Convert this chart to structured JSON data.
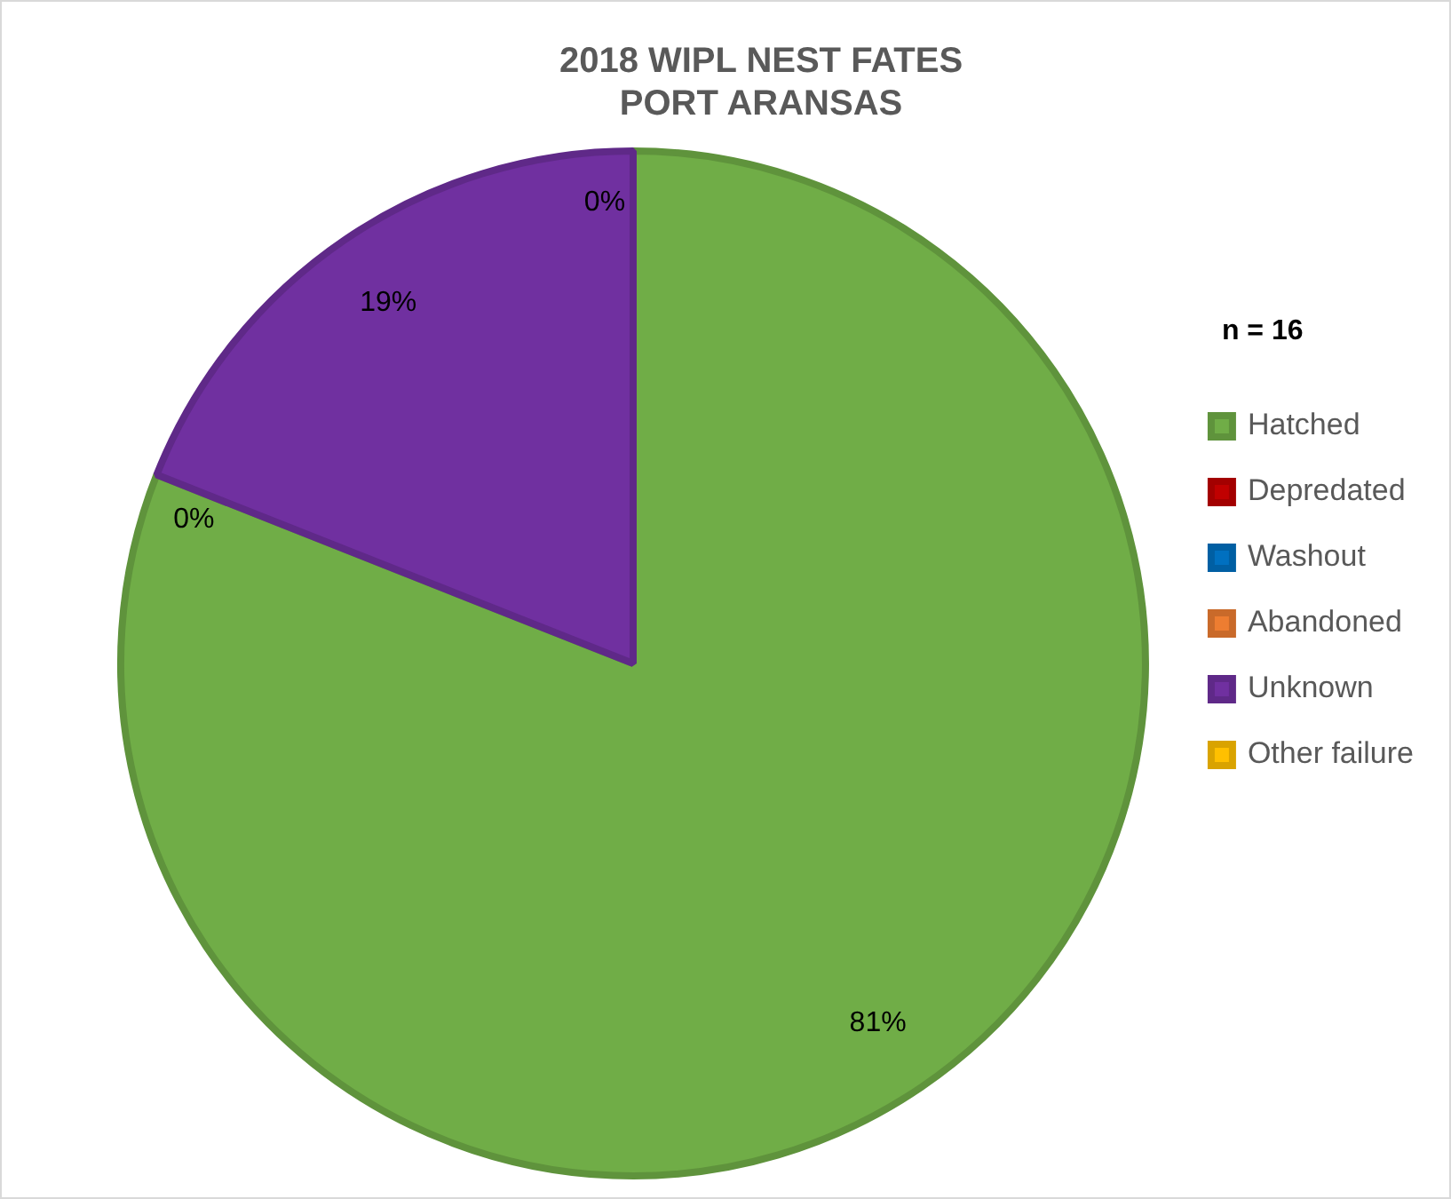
{
  "chart_data": {
    "type": "pie",
    "title": "2018 WIPL NEST FATES\nPORT ARANSAS",
    "categories": [
      "Hatched",
      "Depredated",
      "Washout",
      "Abandoned",
      "Unknown",
      "Other failure"
    ],
    "values": [
      81,
      0,
      0,
      0,
      19,
      0
    ],
    "colors": [
      "#70ad47",
      "#c00000",
      "#0070c0",
      "#ed7d31",
      "#7030a0",
      "#ffc000"
    ],
    "value_labels": [
      "81%",
      null,
      null,
      "0%",
      "19%",
      "0%"
    ],
    "legend": "right",
    "annotations": [
      "n = 16"
    ]
  }
}
